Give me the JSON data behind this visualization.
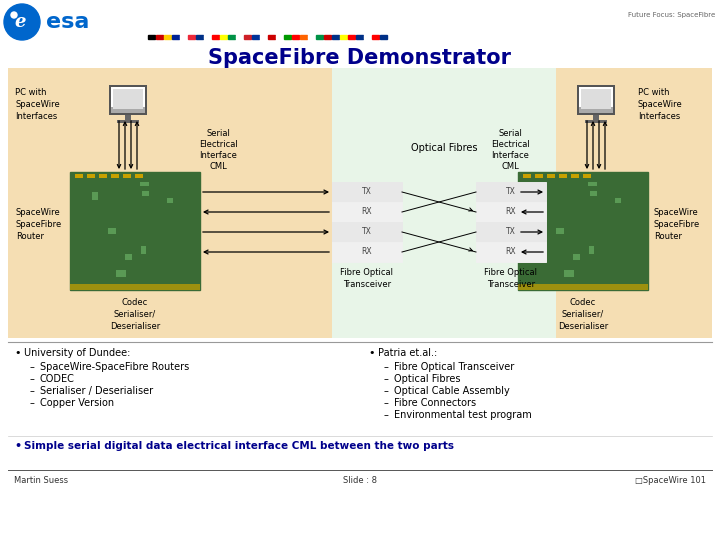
{
  "title": "SpaceFibre Demonstrator",
  "title_color": "#00008B",
  "bg_color": "#FFFFFF",
  "diagram_bg_left": "#F5DEB3",
  "diagram_bg_center": "#E8F5E8",
  "future_focus": "Future Focus: SpaceFibre",
  "bullet_bold": "Simple serial digital data electrical interface CML between the two parts",
  "left_bullet_header": "University of Dundee:",
  "left_bullets": [
    "SpaceWire-SpaceFibre Routers",
    "CODEC",
    "Serialiser / Deserialiser",
    "Copper Version"
  ],
  "right_bullet_header": "Patria et.al.:",
  "right_bullets": [
    "Fibre Optical Transceiver",
    "Optical Fibres",
    "Optical Cable Assembly",
    "Fibre Connectors",
    "Environmental test program"
  ],
  "footer_left": "Martin Suess",
  "footer_center": "Slide : 8",
  "footer_right": "□SpaceWire 101",
  "esa_blue": "#0066CC",
  "navy": "#00008B",
  "flag_colors": [
    "#000000",
    "#CC0000",
    "#FFCC00",
    "#002395",
    "#FFFFFF",
    "#ED2939",
    "#003087",
    "#FFFFFF",
    "#FF0000",
    "#FFFF00",
    "#009246",
    "#FFFFFF",
    "#CE2028",
    "#003399",
    "#FFFFFF",
    "#CC0000",
    "#FFFFFF",
    "#009900",
    "#FF0000",
    "#FF6300",
    "#FFFFFF",
    "#009246",
    "#CC0000",
    "#003087",
    "#FFFF00",
    "#FF0000",
    "#003087",
    "#FFFFFF",
    "#FF0000",
    "#003087"
  ]
}
